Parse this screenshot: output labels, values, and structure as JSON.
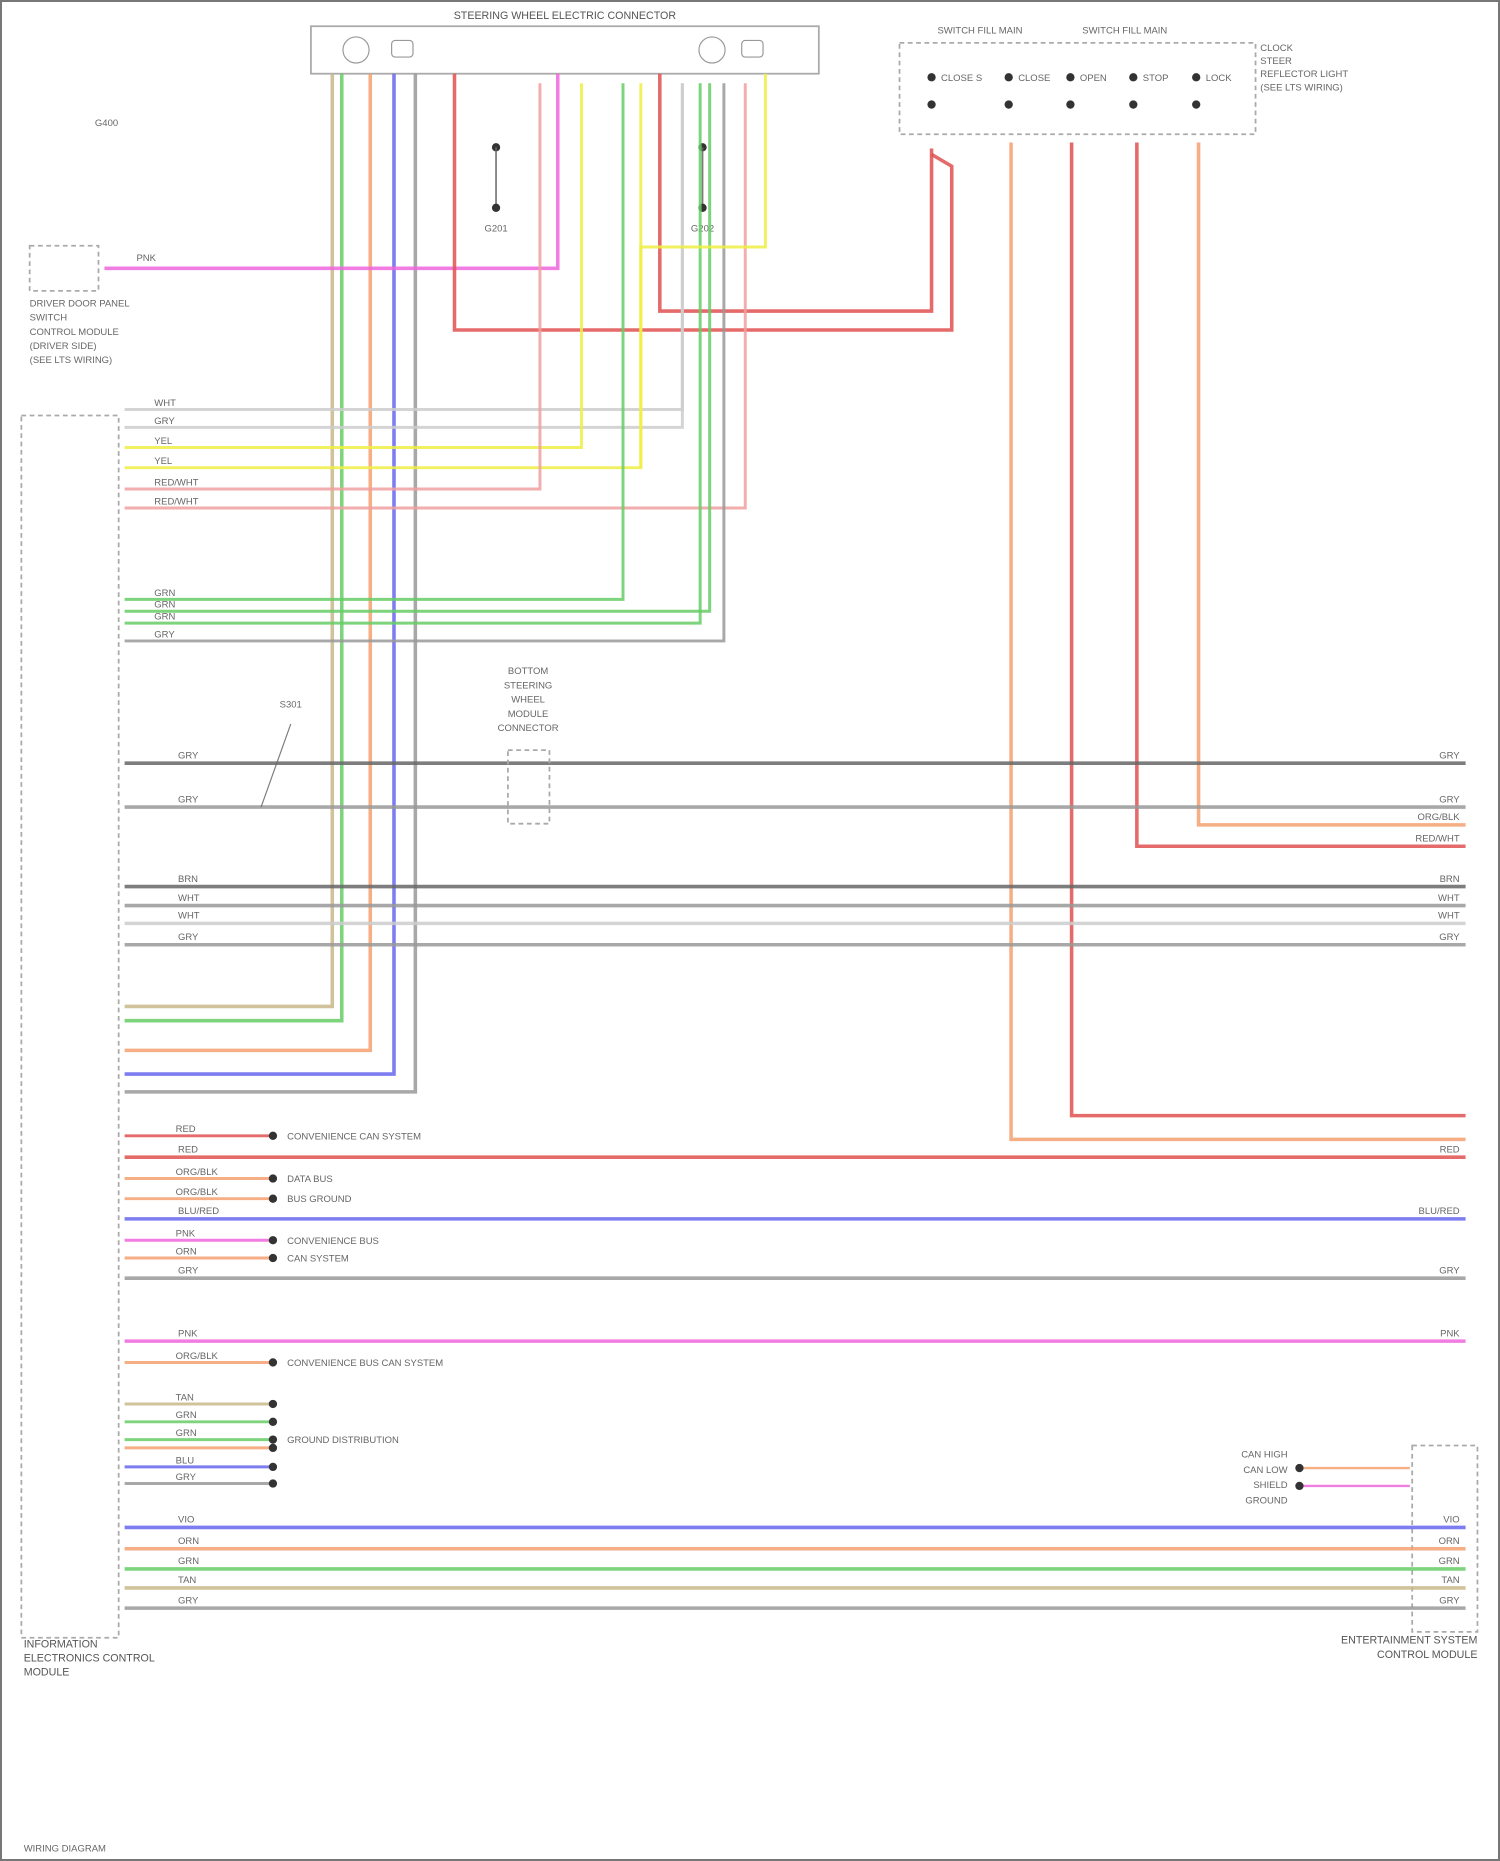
{
  "title": "STEERING WHEEL ELECTRIC CONNECTOR",
  "switch_group_labels": [
    "SWITCH FILL MAIN",
    "SWITCH FILL MAIN"
  ],
  "switch_side_label": [
    "CLOCK",
    "STEER",
    "REFLECTOR LIGHT",
    "(SEE LTS WIRING)"
  ],
  "switch_names": [
    "CLOSE S",
    "CLOSE",
    "OPEN",
    "STOP",
    "LOCK"
  ],
  "ground_labels": [
    "G201",
    "G202"
  ],
  "left_top_note": "G400",
  "left_small_module": [
    "DRIVER DOOR PANEL",
    "SWITCH",
    "CONTROL MODULE",
    "(DRIVER SIDE)",
    "(SEE LTS WIRING)"
  ],
  "center_component": [
    "BOTTOM",
    "STEERING",
    "WHEEL",
    "MODULE",
    "CONNECTOR"
  ],
  "splice_label": "S301",
  "left_module": [
    "INFORMATION",
    "ELECTRONICS CONTROL",
    "MODULE"
  ],
  "right_module": [
    "ENTERTAINMENT SYSTEM",
    "CONTROL MODULE"
  ],
  "right_module_pins": [
    "CAN HIGH",
    "CAN LOW",
    "SHIELD",
    "GROUND"
  ],
  "destinations": [
    "CONVENIENCE CAN SYSTEM",
    "DATA BUS",
    "BUS GROUND",
    "CONVENIENCE BUS",
    "CAN SYSTEM",
    "CONVENIENCE BUS CAN SYSTEM",
    "GROUND DISTRIBUTION"
  ],
  "footer": "WIRING DIAGRAM",
  "wire_colors": {
    "red": "#e05050",
    "pink": "#ee66dd",
    "yellow": "#eeee44",
    "green": "#66cc66",
    "blue": "#6666ee",
    "orange": "#f5a070",
    "tan": "#c8b88a",
    "gray": "#999999",
    "dark": "#666666",
    "light": "#cccccc",
    "lightred": "#f0a0a0"
  },
  "wire_labels": {
    "gray": "GRY",
    "white": "WHT",
    "yellow": "YEL",
    "green": "GRN",
    "blue": "BLU",
    "orange": "ORN",
    "tan": "TAN",
    "red": "RED",
    "pink": "PNK",
    "brown": "BRN",
    "redwht": "RED/WHT",
    "orgblk": "ORG/BLK",
    "blured": "BLU/RED",
    "violet": "VIO"
  }
}
